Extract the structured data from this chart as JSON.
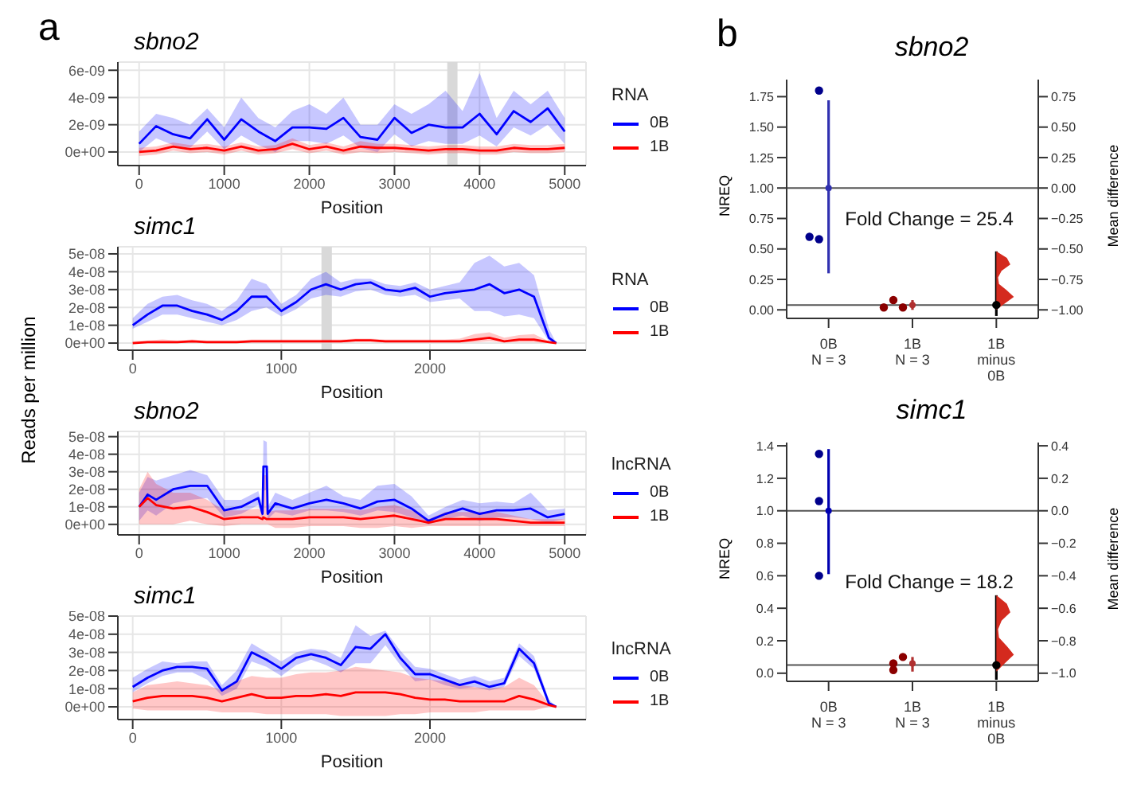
{
  "chart_data": [
    {
      "type": "line",
      "title": "sbno2",
      "annotations": [
        "a"
      ],
      "xlabel": "Position",
      "legend_title": "RNA",
      "legend": "right",
      "grid": true,
      "x": [
        0,
        200,
        400,
        600,
        800,
        1000,
        1200,
        1400,
        1600,
        1800,
        2000,
        2200,
        2400,
        2600,
        2800,
        3000,
        3200,
        3400,
        3600,
        3800,
        4000,
        4200,
        4400,
        4600,
        4800,
        5000
      ],
      "xlim": [
        -250,
        5250
      ],
      "xticks": [
        0,
        1000,
        2000,
        3000,
        4000,
        5000
      ],
      "ylim": [
        -1e-09,
        6.6e-09
      ],
      "yticks": [
        {
          "value": 0,
          "label": "0e+00"
        },
        {
          "value": 2e-09,
          "label": "2e-09"
        },
        {
          "value": 4e-09,
          "label": "4e-09"
        },
        {
          "value": 6e-09,
          "label": "6e-09"
        }
      ],
      "bands": [
        {
          "axis": "x",
          "from": 3620,
          "to": 3740,
          "color": "#d9d9d9"
        }
      ],
      "series": [
        {
          "name": "0B",
          "color": "#0000ff",
          "values": [
            6e-10,
            1.9e-09,
            1.3e-09,
            1e-09,
            2.4e-09,
            9e-10,
            2.4e-09,
            1.5e-09,
            8e-10,
            1.8e-09,
            1.8e-09,
            1.7e-09,
            2.5e-09,
            1.1e-09,
            9e-10,
            2.5e-09,
            1.4e-09,
            2e-09,
            1.8e-09,
            1.8e-09,
            2.8e-09,
            1.3e-09,
            3e-09,
            2.2e-09,
            3.2e-09,
            1.5e-09
          ],
          "lower": [
            0.0,
            1e-09,
            5e-10,
            3e-10,
            1.5e-09,
            2e-10,
            1.2e-09,
            5e-10,
            0.0,
            8e-10,
            8e-10,
            6e-10,
            1.2e-09,
            3e-10,
            0.0,
            1.3e-09,
            4e-10,
            8e-10,
            6e-10,
            6e-10,
            1.2e-09,
            4e-10,
            1.8e-09,
            1.2e-09,
            2e-09,
            6e-10
          ],
          "upper": [
            1.5e-09,
            2.8e-09,
            2.5e-09,
            2e-09,
            3.2e-09,
            1.8e-09,
            4e-09,
            2.5e-09,
            1.8e-09,
            3e-09,
            3.5e-09,
            2.8e-09,
            4e-09,
            2e-09,
            2e-09,
            3.5e-09,
            2.8e-09,
            3.5e-09,
            4.5e-09,
            3e-09,
            5.8e-09,
            2.5e-09,
            4.5e-09,
            3.5e-09,
            4.5e-09,
            2.5e-09
          ]
        },
        {
          "name": "1B",
          "color": "#ff0000",
          "values": [
            0.0,
            1e-10,
            4e-10,
            2e-10,
            3e-10,
            1e-10,
            4e-10,
            1e-10,
            2e-10,
            6e-10,
            2e-10,
            4e-10,
            1e-10,
            4e-10,
            3e-10,
            3e-10,
            2e-10,
            1e-10,
            2e-10,
            2e-10,
            1e-10,
            1e-10,
            3e-10,
            2e-10,
            2e-10,
            3e-10
          ],
          "lower": [
            -3e-10,
            -2e-10,
            1e-10,
            -1e-10,
            0.0,
            -2e-10,
            1e-10,
            -2e-10,
            -1e-10,
            2e-10,
            -1e-10,
            1e-10,
            -2e-10,
            0.0,
            -1e-10,
            0.0,
            -1e-10,
            -2e-10,
            -1e-10,
            -1e-10,
            -2e-10,
            -2e-10,
            0.0,
            -1e-10,
            -1e-10,
            0.0
          ],
          "upper": [
            3e-10,
            4e-10,
            7e-10,
            5e-10,
            6e-10,
            4e-10,
            7e-10,
            4e-10,
            5e-10,
            1e-09,
            5e-10,
            7e-10,
            4e-10,
            8e-10,
            6e-10,
            6e-10,
            5e-10,
            4e-10,
            5e-10,
            5e-10,
            4e-10,
            4e-10,
            6e-10,
            5e-10,
            5e-10,
            6e-10
          ]
        }
      ]
    },
    {
      "type": "line",
      "title": "simc1",
      "xlabel": "Position",
      "ylabel": "Reads per million",
      "legend_title": "RNA",
      "legend": "right",
      "grid": true,
      "x": [
        0,
        100,
        200,
        300,
        400,
        500,
        600,
        700,
        800,
        900,
        1000,
        1100,
        1200,
        1300,
        1400,
        1500,
        1600,
        1700,
        1800,
        1900,
        2000,
        2100,
        2200,
        2300,
        2400,
        2500,
        2600,
        2700,
        2800,
        2850
      ],
      "xlim": [
        -100,
        3050
      ],
      "xticks": [
        0,
        1000,
        2000
      ],
      "ylim": [
        -4e-09,
        5.4e-08
      ],
      "yticks": [
        {
          "value": 0,
          "label": "0e+00"
        },
        {
          "value": 1e-08,
          "label": "1e-08"
        },
        {
          "value": 2e-08,
          "label": "2e-08"
        },
        {
          "value": 3e-08,
          "label": "3e-08"
        },
        {
          "value": 4e-08,
          "label": "4e-08"
        },
        {
          "value": 5e-08,
          "label": "5e-08"
        }
      ],
      "bands": [
        {
          "axis": "x",
          "from": 1270,
          "to": 1340,
          "color": "#d9d9d9"
        }
      ],
      "series": [
        {
          "name": "0B",
          "color": "#0000ff",
          "values": [
            1e-08,
            1.6e-08,
            2.1e-08,
            2.1e-08,
            1.8e-08,
            1.6e-08,
            1.3e-08,
            1.8e-08,
            2.6e-08,
            2.6e-08,
            1.8e-08,
            2.3e-08,
            3e-08,
            3.3e-08,
            3e-08,
            3.3e-08,
            3.4e-08,
            3e-08,
            2.9e-08,
            3.1e-08,
            2.6e-08,
            2.8e-08,
            2.9e-08,
            3e-08,
            3.3e-08,
            2.8e-08,
            3e-08,
            2.6e-08,
            3e-09,
            0.0
          ],
          "lower": [
            8e-09,
            1.2e-08,
            1.6e-08,
            1.6e-08,
            1.4e-08,
            1.2e-08,
            1e-08,
            1.3e-08,
            1.8e-08,
            2e-08,
            1.5e-08,
            1.9e-08,
            2.5e-08,
            2.7e-08,
            2.6e-08,
            2.9e-08,
            3e-08,
            2.7e-08,
            2.6e-08,
            2.7e-08,
            2.3e-08,
            2.4e-08,
            2.5e-08,
            1.8e-08,
            1.8e-08,
            1.5e-08,
            1.6e-08,
            1.4e-08,
            1e-09,
            0.0
          ],
          "upper": [
            1.4e-08,
            2.2e-08,
            2.6e-08,
            2.7e-08,
            2.4e-08,
            2.2e-08,
            1.8e-08,
            2.4e-08,
            3.6e-08,
            3.3e-08,
            2.2e-08,
            2.7e-08,
            3.6e-08,
            4e-08,
            3.4e-08,
            3.6e-08,
            3.6e-08,
            3.3e-08,
            3.2e-08,
            3.4e-08,
            3e-08,
            3.2e-08,
            3.4e-08,
            4.5e-08,
            4.9e-08,
            4.3e-08,
            4.5e-08,
            3.8e-08,
            8e-09,
            0.0
          ]
        },
        {
          "name": "1B",
          "color": "#ff0000",
          "values": [
            0.0,
            5e-10,
            5e-10,
            5e-10,
            1e-09,
            5e-10,
            5e-10,
            5e-10,
            1e-09,
            1e-09,
            1e-09,
            1e-09,
            1e-09,
            1e-09,
            1e-09,
            1.5e-09,
            1.5e-09,
            1e-09,
            1e-09,
            1e-09,
            1e-09,
            1e-09,
            1e-09,
            2e-09,
            3e-09,
            1e-09,
            2e-09,
            2e-09,
            5e-10,
            0.0
          ],
          "lower": [
            0.0,
            0.0,
            0.0,
            0.0,
            5e-10,
            0.0,
            0.0,
            0.0,
            5e-10,
            5e-10,
            5e-10,
            5e-10,
            5e-10,
            5e-10,
            5e-10,
            1e-09,
            1e-09,
            5e-10,
            5e-10,
            5e-10,
            5e-10,
            5e-10,
            5e-10,
            5e-10,
            1e-09,
            5e-10,
            5e-10,
            5e-10,
            0.0,
            0.0
          ],
          "upper": [
            1e-09,
            1.5e-09,
            2e-09,
            1.5e-09,
            2e-09,
            1.5e-09,
            1.5e-09,
            1.5e-09,
            2e-09,
            2e-09,
            2e-09,
            2e-09,
            2e-09,
            2e-09,
            2e-09,
            2.5e-09,
            2.5e-09,
            2e-09,
            2e-09,
            2e-09,
            2e-09,
            2e-09,
            2.5e-09,
            5e-09,
            6e-09,
            3e-09,
            4.5e-09,
            5e-09,
            1e-09,
            0.0
          ]
        }
      ]
    },
    {
      "type": "line",
      "title": "sbno2",
      "xlabel": "Position",
      "legend_title": "lncRNA",
      "legend": "right",
      "grid": true,
      "x": [
        0,
        100,
        200,
        400,
        600,
        800,
        1000,
        1200,
        1400,
        1450,
        1460,
        1500,
        1510,
        1600,
        1800,
        2000,
        2200,
        2400,
        2600,
        2800,
        3000,
        3200,
        3400,
        3600,
        3800,
        4000,
        4200,
        4400,
        4600,
        4800,
        5000
      ],
      "xlim": [
        -250,
        5250
      ],
      "xticks": [
        0,
        1000,
        2000,
        3000,
        4000,
        5000
      ],
      "ylim": [
        -6e-09,
        5.3e-08
      ],
      "yticks": [
        {
          "value": 0,
          "label": "0e+00"
        },
        {
          "value": 1e-08,
          "label": "1e-08"
        },
        {
          "value": 2e-08,
          "label": "2e-08"
        },
        {
          "value": 3e-08,
          "label": "3e-08"
        },
        {
          "value": 4e-08,
          "label": "4e-08"
        },
        {
          "value": 5e-08,
          "label": "5e-08"
        }
      ],
      "series": [
        {
          "name": "0B",
          "color": "#0000ff",
          "values": [
            1e-08,
            1.7e-08,
            1.4e-08,
            2e-08,
            2.2e-08,
            2.2e-08,
            8e-09,
            1e-08,
            1.5e-08,
            6e-09,
            3.3e-08,
            3.3e-08,
            6e-09,
            1.2e-08,
            9e-09,
            1.2e-08,
            1.4e-08,
            1.2e-08,
            9e-09,
            1.3e-08,
            1.4e-08,
            9e-09,
            2e-09,
            6e-09,
            9e-09,
            6e-09,
            8e-09,
            8e-09,
            9e-09,
            4e-09,
            6e-09
          ],
          "lower": [
            2e-09,
            8e-09,
            5e-09,
            1.2e-08,
            1.4e-08,
            1.5e-08,
            4e-09,
            6e-09,
            1.1e-08,
            3e-09,
            1.9e-08,
            2e-08,
            3e-09,
            7e-09,
            5e-09,
            8e-09,
            8e-09,
            7e-09,
            5e-09,
            8e-09,
            7e-09,
            4e-09,
            0.0,
            3e-09,
            5e-09,
            2e-09,
            4e-09,
            4e-09,
            3e-09,
            1e-09,
            3e-09
          ],
          "upper": [
            1.8e-08,
            2.7e-08,
            2.5e-08,
            2.8e-08,
            3.1e-08,
            2.8e-08,
            1.4e-08,
            1.4e-08,
            1.9e-08,
            1e-08,
            4.8e-08,
            4.7e-08,
            1e-08,
            1.8e-08,
            1.4e-08,
            1.8e-08,
            2.2e-08,
            1.6e-08,
            1.4e-08,
            2.2e-08,
            2.3e-08,
            1.6e-08,
            5e-09,
            1e-08,
            1.4e-08,
            1.2e-08,
            1.3e-08,
            1.2e-08,
            1.8e-08,
            8e-09,
            9e-09
          ]
        },
        {
          "name": "1B",
          "color": "#ff0000",
          "values": [
            1e-08,
            1.5e-08,
            1.1e-08,
            9e-09,
            1e-08,
            7e-09,
            3e-09,
            4e-09,
            4e-09,
            3e-09,
            4e-09,
            3e-09,
            3e-09,
            3e-09,
            3e-09,
            4e-09,
            4e-09,
            4e-09,
            3e-09,
            4e-09,
            5e-09,
            3e-09,
            1e-09,
            3e-09,
            3e-09,
            3e-09,
            3e-09,
            2e-09,
            1e-09,
            1e-09,
            1e-09
          ],
          "lower": [
            0.0,
            0.0,
            0.0,
            0.0,
            2e-09,
            0.0,
            -1e-09,
            0.0,
            0.0,
            0.0,
            0.0,
            0.0,
            0.0,
            -2e-09,
            -2e-09,
            -1e-09,
            -1e-09,
            -1e-09,
            -2e-09,
            -2e-09,
            -1e-09,
            -2e-09,
            -1e-09,
            -1e-09,
            -1e-09,
            -1e-09,
            -1e-09,
            -1e-09,
            -1e-09,
            -1e-09,
            -1e-09
          ],
          "upper": [
            2e-08,
            3e-08,
            2.3e-08,
            1.8e-08,
            1.8e-08,
            1.4e-08,
            8e-09,
            8e-09,
            9e-09,
            7e-09,
            2.8e-08,
            2.8e-08,
            7e-09,
            8e-09,
            8e-09,
            9e-09,
            9e-09,
            9e-09,
            8e-09,
            1e-08,
            1.1e-08,
            8e-09,
            3e-09,
            7e-09,
            7e-09,
            7e-09,
            7e-09,
            5e-09,
            3e-09,
            3e-09,
            3e-09
          ]
        }
      ]
    },
    {
      "type": "line",
      "title": "simc1",
      "xlabel": "Position",
      "legend_title": "lncRNA",
      "legend": "right",
      "grid": true,
      "x": [
        0,
        100,
        200,
        300,
        400,
        500,
        600,
        700,
        800,
        900,
        1000,
        1100,
        1200,
        1300,
        1400,
        1500,
        1600,
        1700,
        1800,
        1900,
        2000,
        2100,
        2200,
        2300,
        2400,
        2500,
        2600,
        2700,
        2800,
        2850
      ],
      "xlim": [
        -100,
        3050
      ],
      "xticks": [
        0,
        1000,
        2000
      ],
      "ylim": [
        -7e-09,
        5e-08
      ],
      "yticks": [
        {
          "value": 0,
          "label": "0e+00"
        },
        {
          "value": 1e-08,
          "label": "1e-08"
        },
        {
          "value": 2e-08,
          "label": "2e-08"
        },
        {
          "value": 3e-08,
          "label": "3e-08"
        },
        {
          "value": 4e-08,
          "label": "4e-08"
        },
        {
          "value": 5e-08,
          "label": "5e-08"
        }
      ],
      "series": [
        {
          "name": "0B",
          "color": "#0000ff",
          "values": [
            1.1e-08,
            1.6e-08,
            2e-08,
            2.2e-08,
            2.2e-08,
            2.1e-08,
            9e-09,
            1.4e-08,
            3e-08,
            2.6e-08,
            2.1e-08,
            2.7e-08,
            2.9e-08,
            2.7e-08,
            2.3e-08,
            3.3e-08,
            3.2e-08,
            4e-08,
            2.7e-08,
            1.8e-08,
            1.8e-08,
            1.5e-08,
            1.2e-08,
            1.4e-08,
            1.1e-08,
            1.3e-08,
            3.2e-08,
            2.4e-08,
            2e-09,
            0.0
          ],
          "lower": [
            8e-09,
            1.3e-08,
            1.7e-08,
            1.9e-08,
            1.9e-08,
            1.5e-08,
            6e-09,
            1e-08,
            2.5e-08,
            2.2e-08,
            1.7e-08,
            2.3e-08,
            2.6e-08,
            2.3e-08,
            1.9e-08,
            2.4e-08,
            2.4e-08,
            3.4e-08,
            2.3e-08,
            1.4e-08,
            1.5e-08,
            1.2e-08,
            1e-08,
            1.1e-08,
            9e-09,
            1.1e-08,
            2.8e-08,
            2.1e-08,
            1e-09,
            0.0
          ],
          "upper": [
            1.6e-08,
            2.1e-08,
            2.5e-08,
            2.4e-08,
            2.5e-08,
            2.5e-08,
            1.2e-08,
            2e-08,
            3.5e-08,
            3e-08,
            2.5e-08,
            3e-08,
            3.2e-08,
            3.1e-08,
            2.7e-08,
            4.5e-08,
            3.9e-08,
            4.2e-08,
            3.1e-08,
            2.2e-08,
            2.1e-08,
            1.8e-08,
            1.5e-08,
            1.7e-08,
            1.4e-08,
            1.6e-08,
            3.5e-08,
            2.8e-08,
            4e-09,
            0.0
          ]
        },
        {
          "name": "1B",
          "color": "#ff0000",
          "values": [
            3e-09,
            5e-09,
            6e-09,
            6e-09,
            6e-09,
            5e-09,
            3e-09,
            5e-09,
            7e-09,
            5e-09,
            5e-09,
            6e-09,
            6e-09,
            7e-09,
            6e-09,
            8e-09,
            8e-09,
            8e-09,
            7e-09,
            5e-09,
            4e-09,
            4e-09,
            3e-09,
            3e-09,
            3e-09,
            3e-09,
            6e-09,
            4e-09,
            1e-09,
            0.0
          ],
          "lower": [
            -1e-09,
            -2e-09,
            -2e-09,
            -2e-09,
            -2e-09,
            -2e-09,
            -3e-09,
            -3e-09,
            -3e-09,
            -4e-09,
            -4e-09,
            -4e-09,
            -4e-09,
            -4e-09,
            -5e-09,
            -5e-09,
            -5e-09,
            -5e-09,
            -4e-09,
            -4e-09,
            -3e-09,
            -3e-09,
            -3e-09,
            -3e-09,
            -2e-09,
            -2e-09,
            -2e-09,
            -2e-09,
            0.0,
            0.0
          ],
          "upper": [
            8e-09,
            1.2e-08,
            1.3e-08,
            1.4e-08,
            1.3e-08,
            1.2e-08,
            9e-09,
            1.4e-08,
            1.7e-08,
            1.6e-08,
            1.6e-08,
            1.8e-08,
            1.9e-08,
            1.9e-08,
            2e-08,
            2.2e-08,
            2.1e-08,
            2e-08,
            1.9e-08,
            1.6e-08,
            1.5e-08,
            1.4e-08,
            1.2e-08,
            1.1e-08,
            1e-08,
            1.1e-08,
            1.6e-08,
            1.2e-08,
            2e-09,
            0.0
          ]
        }
      ]
    },
    {
      "type": "scatter",
      "title": "sbno2",
      "annotations": [
        "b",
        "Fold Change = 25.4"
      ],
      "ylabel": "NREQ",
      "y2label": "Mean difference",
      "categories": [
        "0B\nN = 3",
        "1B\nN = 3",
        "1B\nminus\n0B"
      ],
      "ylim": [
        -0.07,
        1.89
      ],
      "yticks": [
        {
          "value": 0,
          "label": "0.00"
        },
        {
          "value": 0.25,
          "label": "0.25"
        },
        {
          "value": 0.5,
          "label": "0.50"
        },
        {
          "value": 0.75,
          "label": "0.75"
        },
        {
          "value": 1,
          "label": "1.00"
        },
        {
          "value": 1.25,
          "label": "1.25"
        },
        {
          "value": 1.5,
          "label": "1.50"
        },
        {
          "value": 1.75,
          "label": "1.75"
        }
      ],
      "y2lim": [
        -1.07,
        0.89
      ],
      "y2ticks": [
        {
          "value": -1,
          "label": "−1.00"
        },
        {
          "value": -0.75,
          "label": "−0.75"
        },
        {
          "value": -0.5,
          "label": "−0.50"
        },
        {
          "value": -0.25,
          "label": "−0.25"
        },
        {
          "value": 0,
          "label": "0.00"
        },
        {
          "value": 0.25,
          "label": "0.25"
        },
        {
          "value": 0.5,
          "label": "0.50"
        },
        {
          "value": 0.75,
          "label": "0.75"
        }
      ],
      "ref_lines": [
        {
          "axis": "y2",
          "value": 0,
          "color": "#555555"
        },
        {
          "axis": "y2",
          "value": -0.96,
          "color": "#555555"
        }
      ],
      "series": [
        {
          "marker": "circle",
          "x": [
            "0B\nN = 3",
            "0B\nN = 3",
            "0B\nN = 3",
            "1B\nN = 3",
            "1B\nN = 3",
            "1B\nN = 3"
          ],
          "values": [
            1.8,
            0.58,
            0.6,
            0.02,
            0.08,
            0.02
          ],
          "colors": [
            "#00008b",
            "#00008b",
            "#00008b",
            "#8b0000",
            "#8b0000",
            "#8b0000"
          ]
        },
        {
          "marker": "circle",
          "x": [
            "0B\nN = 3",
            "1B\nN = 3"
          ],
          "values": [
            1.0,
            0.04
          ],
          "errors": [
            [
              0.3,
              1.72
            ],
            [
              0.0,
              0.08
            ]
          ],
          "colors": [
            "#3030b0",
            "#b03030"
          ]
        },
        {
          "marker": "circle",
          "axis": "y2",
          "x": [
            "1B\nminus\n0B"
          ],
          "values": [
            -0.96
          ],
          "errors": [
            [
              -1.05,
              -0.52
            ]
          ],
          "color": "#000000"
        }
      ]
    },
    {
      "type": "scatter",
      "title": "simc1",
      "annotations": [
        "Fold Change = 18.2"
      ],
      "ylabel": "NREQ",
      "y2label": "Mean difference",
      "categories": [
        "0B\nN = 3",
        "1B\nN = 3",
        "1B\nminus\n0B"
      ],
      "ylim": [
        -0.05,
        1.42
      ],
      "yticks": [
        {
          "value": 0,
          "label": "0.0"
        },
        {
          "value": 0.2,
          "label": "0.2"
        },
        {
          "value": 0.4,
          "label": "0.4"
        },
        {
          "value": 0.6,
          "label": "0.6"
        },
        {
          "value": 0.8,
          "label": "0.8"
        },
        {
          "value": 1,
          "label": "1.0"
        },
        {
          "value": 1.2,
          "label": "1.2"
        },
        {
          "value": 1.4,
          "label": "1.4"
        }
      ],
      "y2lim": [
        -1.05,
        0.42
      ],
      "y2ticks": [
        {
          "value": -1,
          "label": "−1.0"
        },
        {
          "value": -0.8,
          "label": "−0.8"
        },
        {
          "value": -0.6,
          "label": "−0.6"
        },
        {
          "value": -0.4,
          "label": "−0.4"
        },
        {
          "value": -0.2,
          "label": "−0.2"
        },
        {
          "value": 0,
          "label": "0.0"
        },
        {
          "value": 0.2,
          "label": "0.2"
        },
        {
          "value": 0.4,
          "label": "0.4"
        }
      ],
      "ref_lines": [
        {
          "axis": "y2",
          "value": 0,
          "color": "#555555"
        },
        {
          "axis": "y2",
          "value": -0.95,
          "color": "#555555"
        }
      ],
      "series": [
        {
          "marker": "circle",
          "x": [
            "0B\nN = 3",
            "0B\nN = 3",
            "0B\nN = 3",
            "1B\nN = 3",
            "1B\nN = 3",
            "1B\nN = 3"
          ],
          "values": [
            1.35,
            1.06,
            0.6,
            0.1,
            0.06,
            0.02
          ],
          "colors": [
            "#00008b",
            "#00008b",
            "#00008b",
            "#8b0000",
            "#8b0000",
            "#8b0000"
          ]
        },
        {
          "marker": "circle",
          "x": [
            "0B\nN = 3",
            "1B\nN = 3"
          ],
          "values": [
            1.0,
            0.06
          ],
          "errors": [
            [
              0.61,
              1.38
            ],
            [
              0.01,
              0.1
            ]
          ],
          "colors": [
            "#0000b0",
            "#b03030"
          ]
        },
        {
          "marker": "circle",
          "axis": "y2",
          "x": [
            "1B\nminus\n0B"
          ],
          "values": [
            -0.95
          ],
          "errors": [
            [
              -1.04,
              -0.52
            ]
          ],
          "color": "#000000"
        }
      ]
    }
  ]
}
